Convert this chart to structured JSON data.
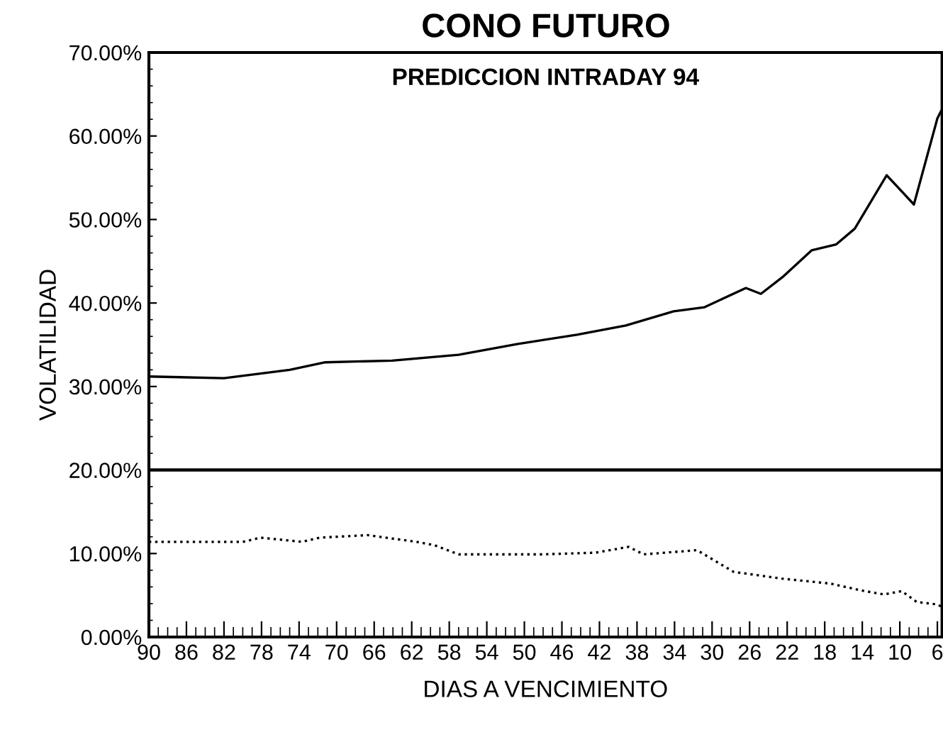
{
  "chart_data": {
    "type": "line",
    "title": "CONO FUTURO",
    "subtitle": "PREDICCION INTRADAY 94",
    "xlabel": "DIAS A VENCIMIENTO",
    "ylabel": "VOLATILIDAD",
    "xlim": [
      90,
      5.5
    ],
    "ylim": [
      0,
      70
    ],
    "xticks": [
      90,
      86,
      82,
      78,
      74,
      70,
      66,
      62,
      58,
      54,
      50,
      46,
      42,
      38,
      34,
      30,
      26,
      22,
      18,
      14,
      10,
      6
    ],
    "yticks": [
      {
        "value": 0,
        "label": "0.00%"
      },
      {
        "value": 10,
        "label": "10.00%"
      },
      {
        "value": 20,
        "label": "20.00%"
      },
      {
        "value": 30,
        "label": "30.00%"
      },
      {
        "value": 40,
        "label": "40.00%"
      },
      {
        "value": 50,
        "label": "50.00%"
      },
      {
        "value": 60,
        "label": "60.00%"
      },
      {
        "value": 70,
        "label": "70.00%"
      }
    ],
    "grid": false,
    "legend": false,
    "ref_lines": [
      {
        "axis": "y",
        "value": 20,
        "color": "#000000",
        "line_style": "solid"
      }
    ],
    "series": [
      {
        "color": "#000000",
        "line_style": "solid",
        "x": [
          90,
          82,
          75,
          71.2,
          64.1,
          57,
          50.7,
          44.4,
          39.2,
          34.1,
          30.8,
          26.4,
          24.8,
          22.5,
          19.4,
          16.8,
          14.8,
          11.4,
          8.5,
          6.0,
          5.6
        ],
        "values": [
          31.2,
          31,
          32,
          32.9,
          33.1,
          33.8,
          35.1,
          36.2,
          37.3,
          39.0,
          39.5,
          41.8,
          41.1,
          43.1,
          46.3,
          47.0,
          48.9,
          55.3,
          51.8,
          62.1,
          63
        ]
      },
      {
        "color": "#000000",
        "line_style": "dotted",
        "x": [
          90,
          80,
          78.1,
          73.7,
          71.8,
          66.7,
          61.5,
          59.6,
          57,
          48.1,
          42.4,
          38.9,
          37.3,
          31.6,
          27.7,
          22.6,
          17.4,
          14.2,
          11.7,
          9.8,
          8.2,
          6.0,
          5.5
        ],
        "values": [
          11.4,
          11.4,
          11.9,
          11.4,
          11.9,
          12.2,
          11.4,
          11.0,
          9.9,
          9.9,
          10.1,
          10.8,
          9.9,
          10.4,
          7.8,
          7.0,
          6.4,
          5.6,
          5.1,
          5.5,
          4.2,
          3.9,
          3.6
        ]
      }
    ]
  }
}
